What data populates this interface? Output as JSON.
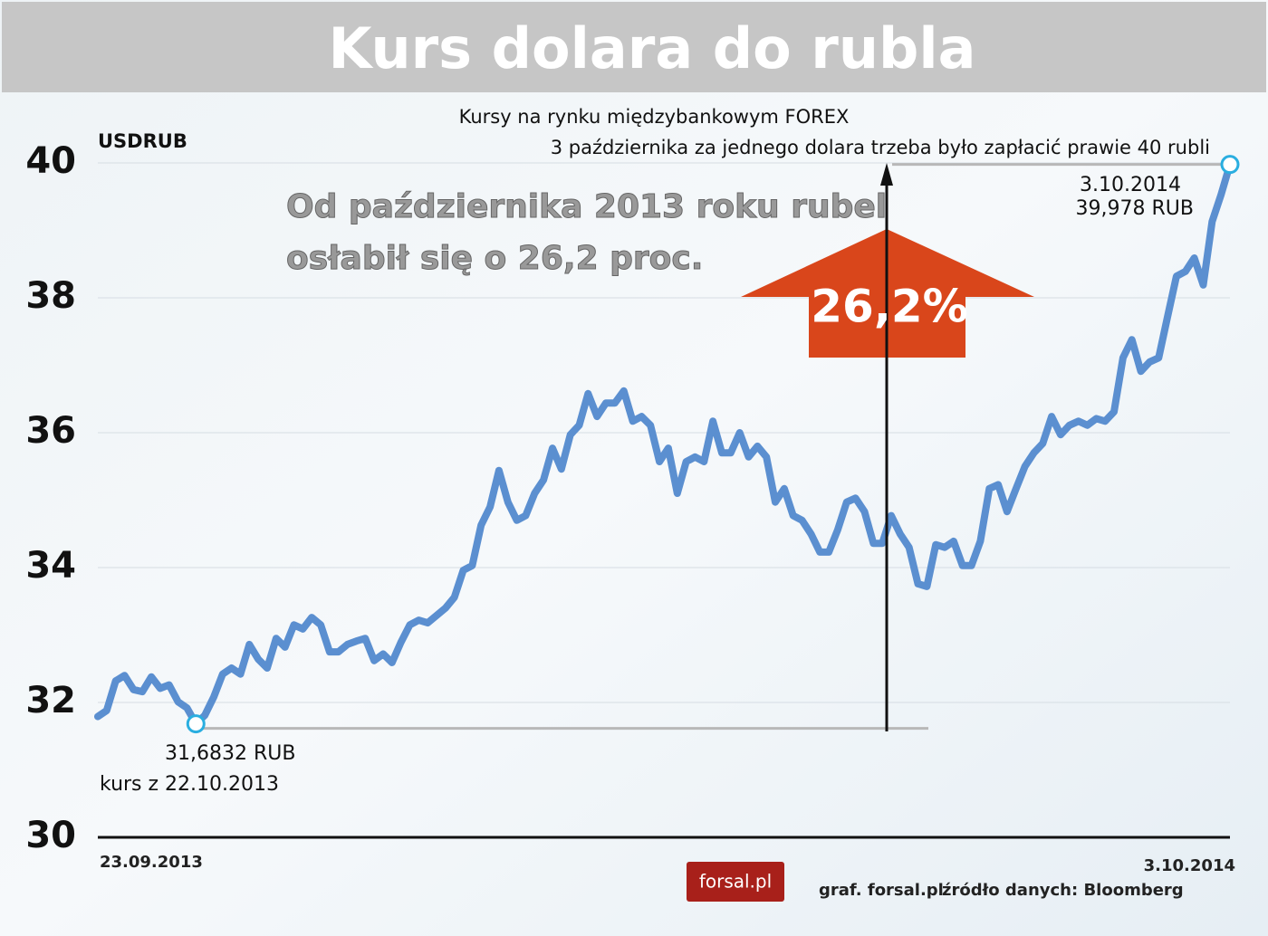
{
  "chart_data": {
    "type": "line",
    "title": "Kurs dolara do rubla",
    "subtitle": "Kursy na rynku międzybankowym FOREX",
    "subtitle2": "3 października za jednego dolara trzeba było zapłacić prawie 40 rubli",
    "y_label": "USDRUB",
    "headline": [
      "Od października 2013 roku rubel",
      "osłabił się o 26,2 proc."
    ],
    "arrow_label": "26,2%",
    "annotations": {
      "min_value": "31,6832 RUB",
      "min_date": "kurs z 22.10.2013",
      "max_date": "3.10.2014",
      "max_value": "39,978 RUB"
    },
    "footer": {
      "logo": "forsal.pl",
      "credit": "graf. forsal.pl",
      "source": "źródło danych: Bloomberg"
    },
    "categories": [
      "23.09.2013",
      null,
      null,
      null,
      null,
      null,
      null,
      null,
      null,
      null,
      null,
      null,
      null,
      null,
      null,
      null,
      null,
      null,
      null,
      null,
      null,
      null,
      null,
      null,
      null,
      null,
      null,
      null,
      null,
      null,
      null,
      null,
      null,
      null,
      null,
      null,
      null,
      null,
      null,
      null,
      null,
      null,
      null,
      null,
      null,
      null,
      null,
      null,
      null,
      null,
      null,
      null,
      null,
      null,
      null,
      null,
      null,
      null,
      null,
      null,
      null,
      null,
      null,
      null,
      null,
      null,
      null,
      null,
      null,
      null,
      null,
      null,
      null,
      null,
      null,
      null,
      null,
      null,
      null,
      null,
      null,
      null,
      null,
      null,
      null,
      null,
      null,
      null,
      null,
      null,
      null,
      null,
      null,
      null,
      null,
      null,
      null,
      null,
      null,
      null,
      null,
      null,
      null,
      null,
      null,
      null,
      null,
      null,
      null,
      null,
      null,
      null,
      null,
      null,
      null,
      null,
      null,
      null,
      null,
      null,
      null,
      null,
      null,
      null,
      null,
      null,
      null,
      "3.10.2014"
    ],
    "series": [
      {
        "name": "USDRUB",
        "color": "#5b8fd0",
        "values": [
          31.79,
          31.88,
          32.32,
          32.4,
          32.19,
          32.16,
          32.38,
          32.21,
          32.26,
          32.01,
          31.92,
          31.6832,
          31.81,
          32.08,
          32.42,
          32.51,
          32.42,
          32.86,
          32.64,
          32.51,
          32.95,
          32.82,
          33.15,
          33.09,
          33.26,
          33.15,
          32.75,
          32.75,
          32.86,
          32.91,
          32.95,
          32.62,
          32.72,
          32.59,
          32.89,
          33.15,
          33.22,
          33.18,
          33.29,
          33.4,
          33.56,
          33.96,
          34.03,
          34.63,
          34.9,
          35.44,
          34.97,
          34.7,
          34.77,
          35.1,
          35.3,
          35.77,
          35.46,
          35.97,
          36.11,
          36.58,
          36.24,
          36.44,
          36.44,
          36.62,
          36.17,
          36.24,
          36.11,
          35.57,
          35.77,
          35.1,
          35.57,
          35.64,
          35.57,
          36.17,
          35.7,
          35.7,
          36.0,
          35.64,
          35.8,
          35.64,
          34.97,
          35.17,
          34.77,
          34.7,
          34.5,
          34.23,
          34.23,
          34.56,
          34.97,
          35.03,
          34.83,
          34.36,
          34.36,
          34.77,
          34.5,
          34.3,
          33.76,
          33.72,
          34.34,
          34.3,
          34.39,
          34.03,
          34.03,
          34.39,
          35.17,
          35.23,
          34.83,
          35.17,
          35.5,
          35.7,
          35.84,
          36.24,
          35.97,
          36.11,
          36.17,
          36.11,
          36.21,
          36.17,
          36.31,
          37.11,
          37.38,
          36.91,
          37.05,
          37.11,
          37.72,
          38.32,
          38.39,
          38.59,
          38.19,
          39.13,
          39.53,
          39.978
        ]
      }
    ],
    "ylim": [
      30,
      40
    ],
    "yticks": [
      30,
      32,
      34,
      36,
      38,
      40
    ],
    "grid": true
  }
}
